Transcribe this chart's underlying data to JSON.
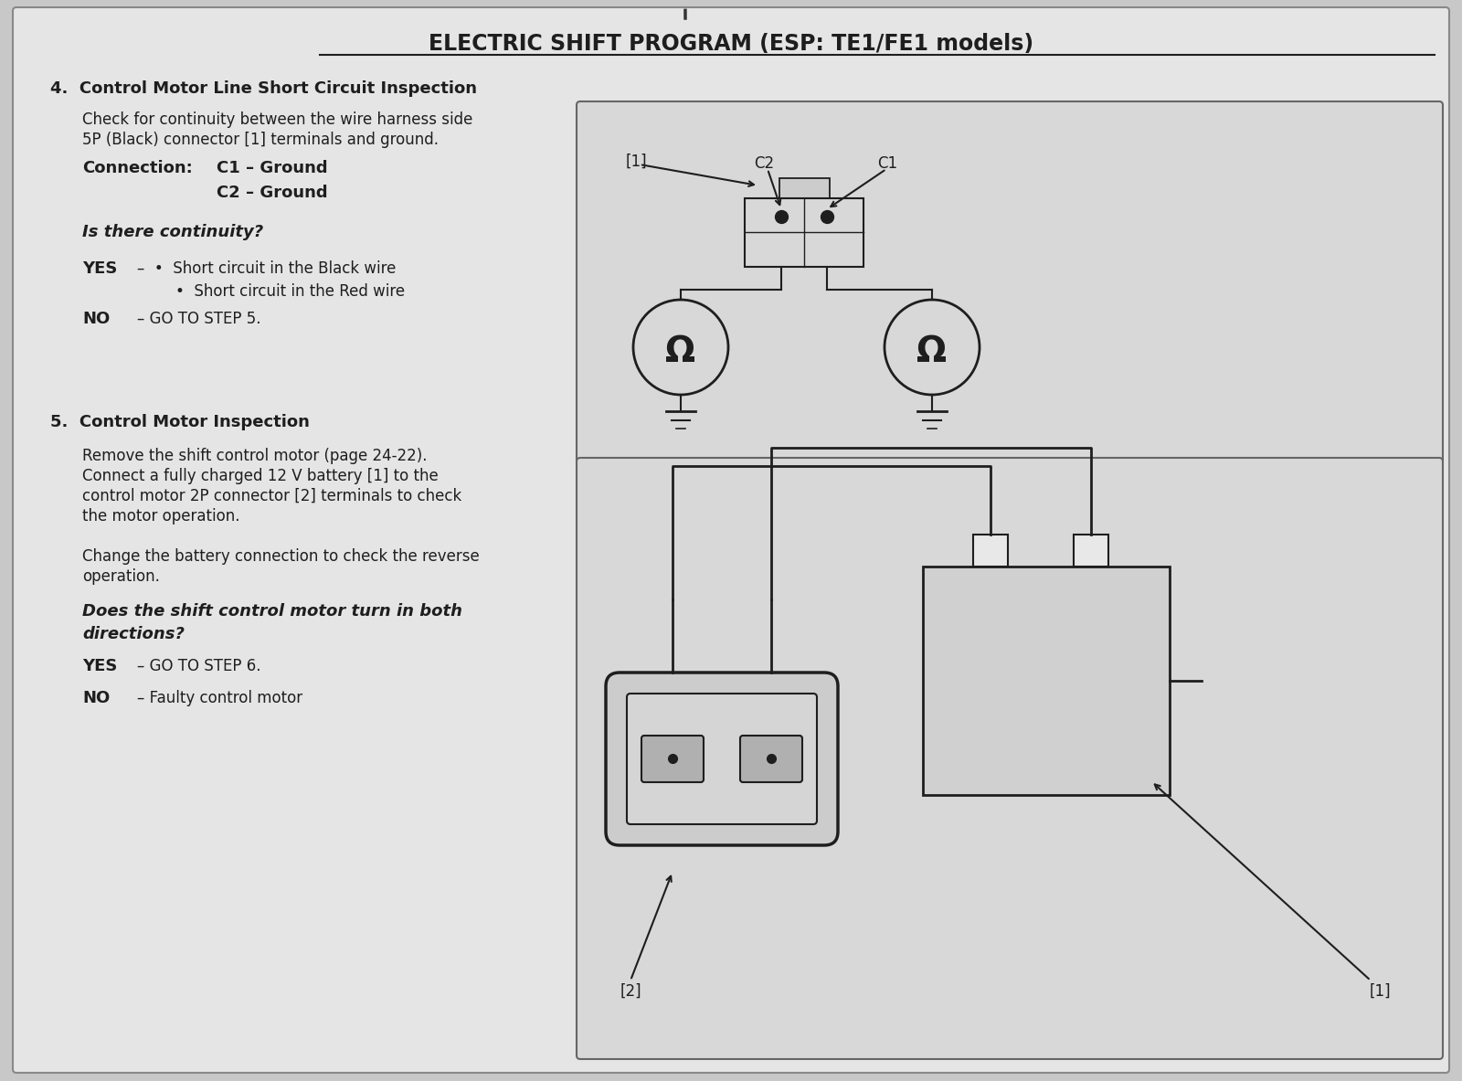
{
  "bg_color": "#c8c8c8",
  "page_bg": "#e8e8e8",
  "title": "ELECTRIC SHIFT PROGRAM (ESP: TE1/FE1 models)",
  "section4_title": "4.  Control Motor Line Short Circuit Inspection",
  "section4_body1": "Check for continuity between the wire harness side\n5P (Black) connector [1] terminals and ground.",
  "section4_conn1": "Connection: C1 – Ground",
  "section4_conn2": "C2 – Ground",
  "section4_q": "Is there continuity?",
  "section4_yes_label": "YES",
  "section4_yes1": "Short circuit in the Black wire",
  "section4_yes2": "Short circuit in the Red wire",
  "section4_no_label": "NO",
  "section4_no_text": "– GO TO STEP 5.",
  "section5_title": "5.  Control Motor Inspection",
  "section5_line1": "Remove the shift control motor (page 24-22).",
  "section5_line2": "Connect a fully charged 12 V battery [1] to the",
  "section5_line3": "control motor 2P connector [2] terminals to check",
  "section5_line4": "the motor operation.",
  "section5_line5": "Change the battery connection to check the reverse",
  "section5_line6": "operation.",
  "section5_q1": "Does the shift control motor turn in both",
  "section5_q2": "directions?",
  "section5_yes_label": "YES",
  "section5_yes_text": "– GO TO STEP 6.",
  "section5_no_label": "NO",
  "section5_no_text": "– Faulty control motor",
  "diag1_lbl1": "[1]",
  "diag1_lblC2": "C2",
  "diag1_lblC1": "C1",
  "diag2_lbl2": "[2]",
  "diag2_lbl1": "[1]",
  "text_color": "#1e1e1e",
  "line_color": "#1e1e1e"
}
